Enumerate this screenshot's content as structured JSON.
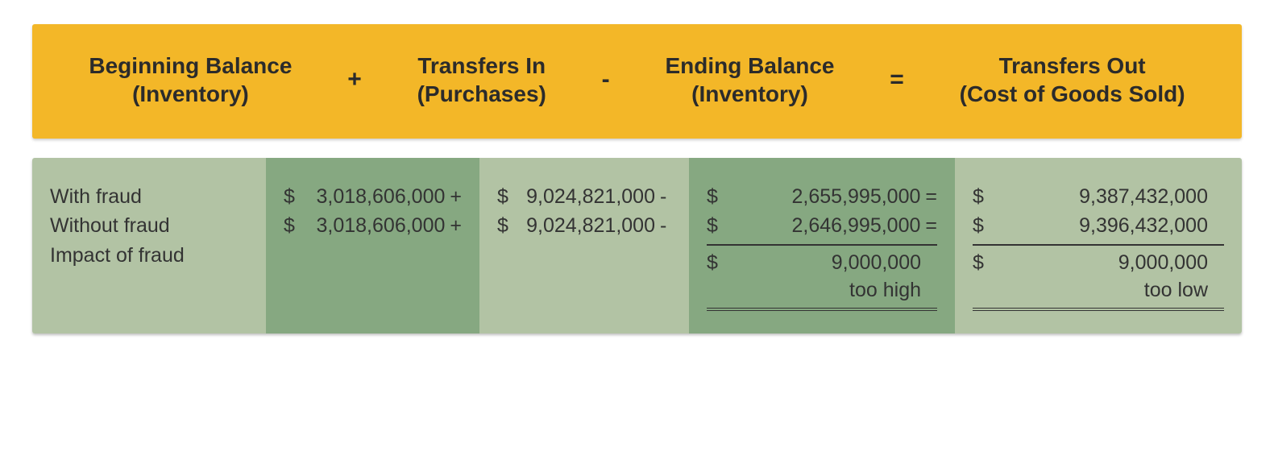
{
  "formula": {
    "term1_line1": "Beginning Balance",
    "term1_line2": "(Inventory)",
    "op1": "+",
    "term2_line1": "Transfers In",
    "term2_line2": "(Purchases)",
    "op2": "-",
    "term3_line1": "Ending Balance",
    "term3_line2": "(Inventory)",
    "op3": "=",
    "term4_line1": "Transfers Out",
    "term4_line2": "(Cost of Goods Sold)"
  },
  "labels": {
    "row1": "With fraud",
    "row2": "Without fraud",
    "row3": "Impact of fraud"
  },
  "begin": {
    "row1_val": "3,018,606,000",
    "row1_suf": "+",
    "row2_val": "3,018,606,000",
    "row2_suf": "+"
  },
  "transin": {
    "row1_val": "9,024,821,000",
    "row1_suf": "-",
    "row2_val": "9,024,821,000",
    "row2_suf": "-"
  },
  "ending": {
    "row1_val": "2,655,995,000",
    "row1_suf": "=",
    "row2_val": "2,646,995,000",
    "row2_suf": "=",
    "row3_val": "9,000,000",
    "note": "too high"
  },
  "out": {
    "row1_val": "9,387,432,000",
    "row2_val": "9,396,432,000",
    "row3_val": "9,000,000",
    "note": "too low"
  },
  "currency": "$",
  "colors": {
    "formula_bg": "#f3b728",
    "light_green": "#b2c3a4",
    "dark_green": "#86a881",
    "text": "#333333"
  }
}
